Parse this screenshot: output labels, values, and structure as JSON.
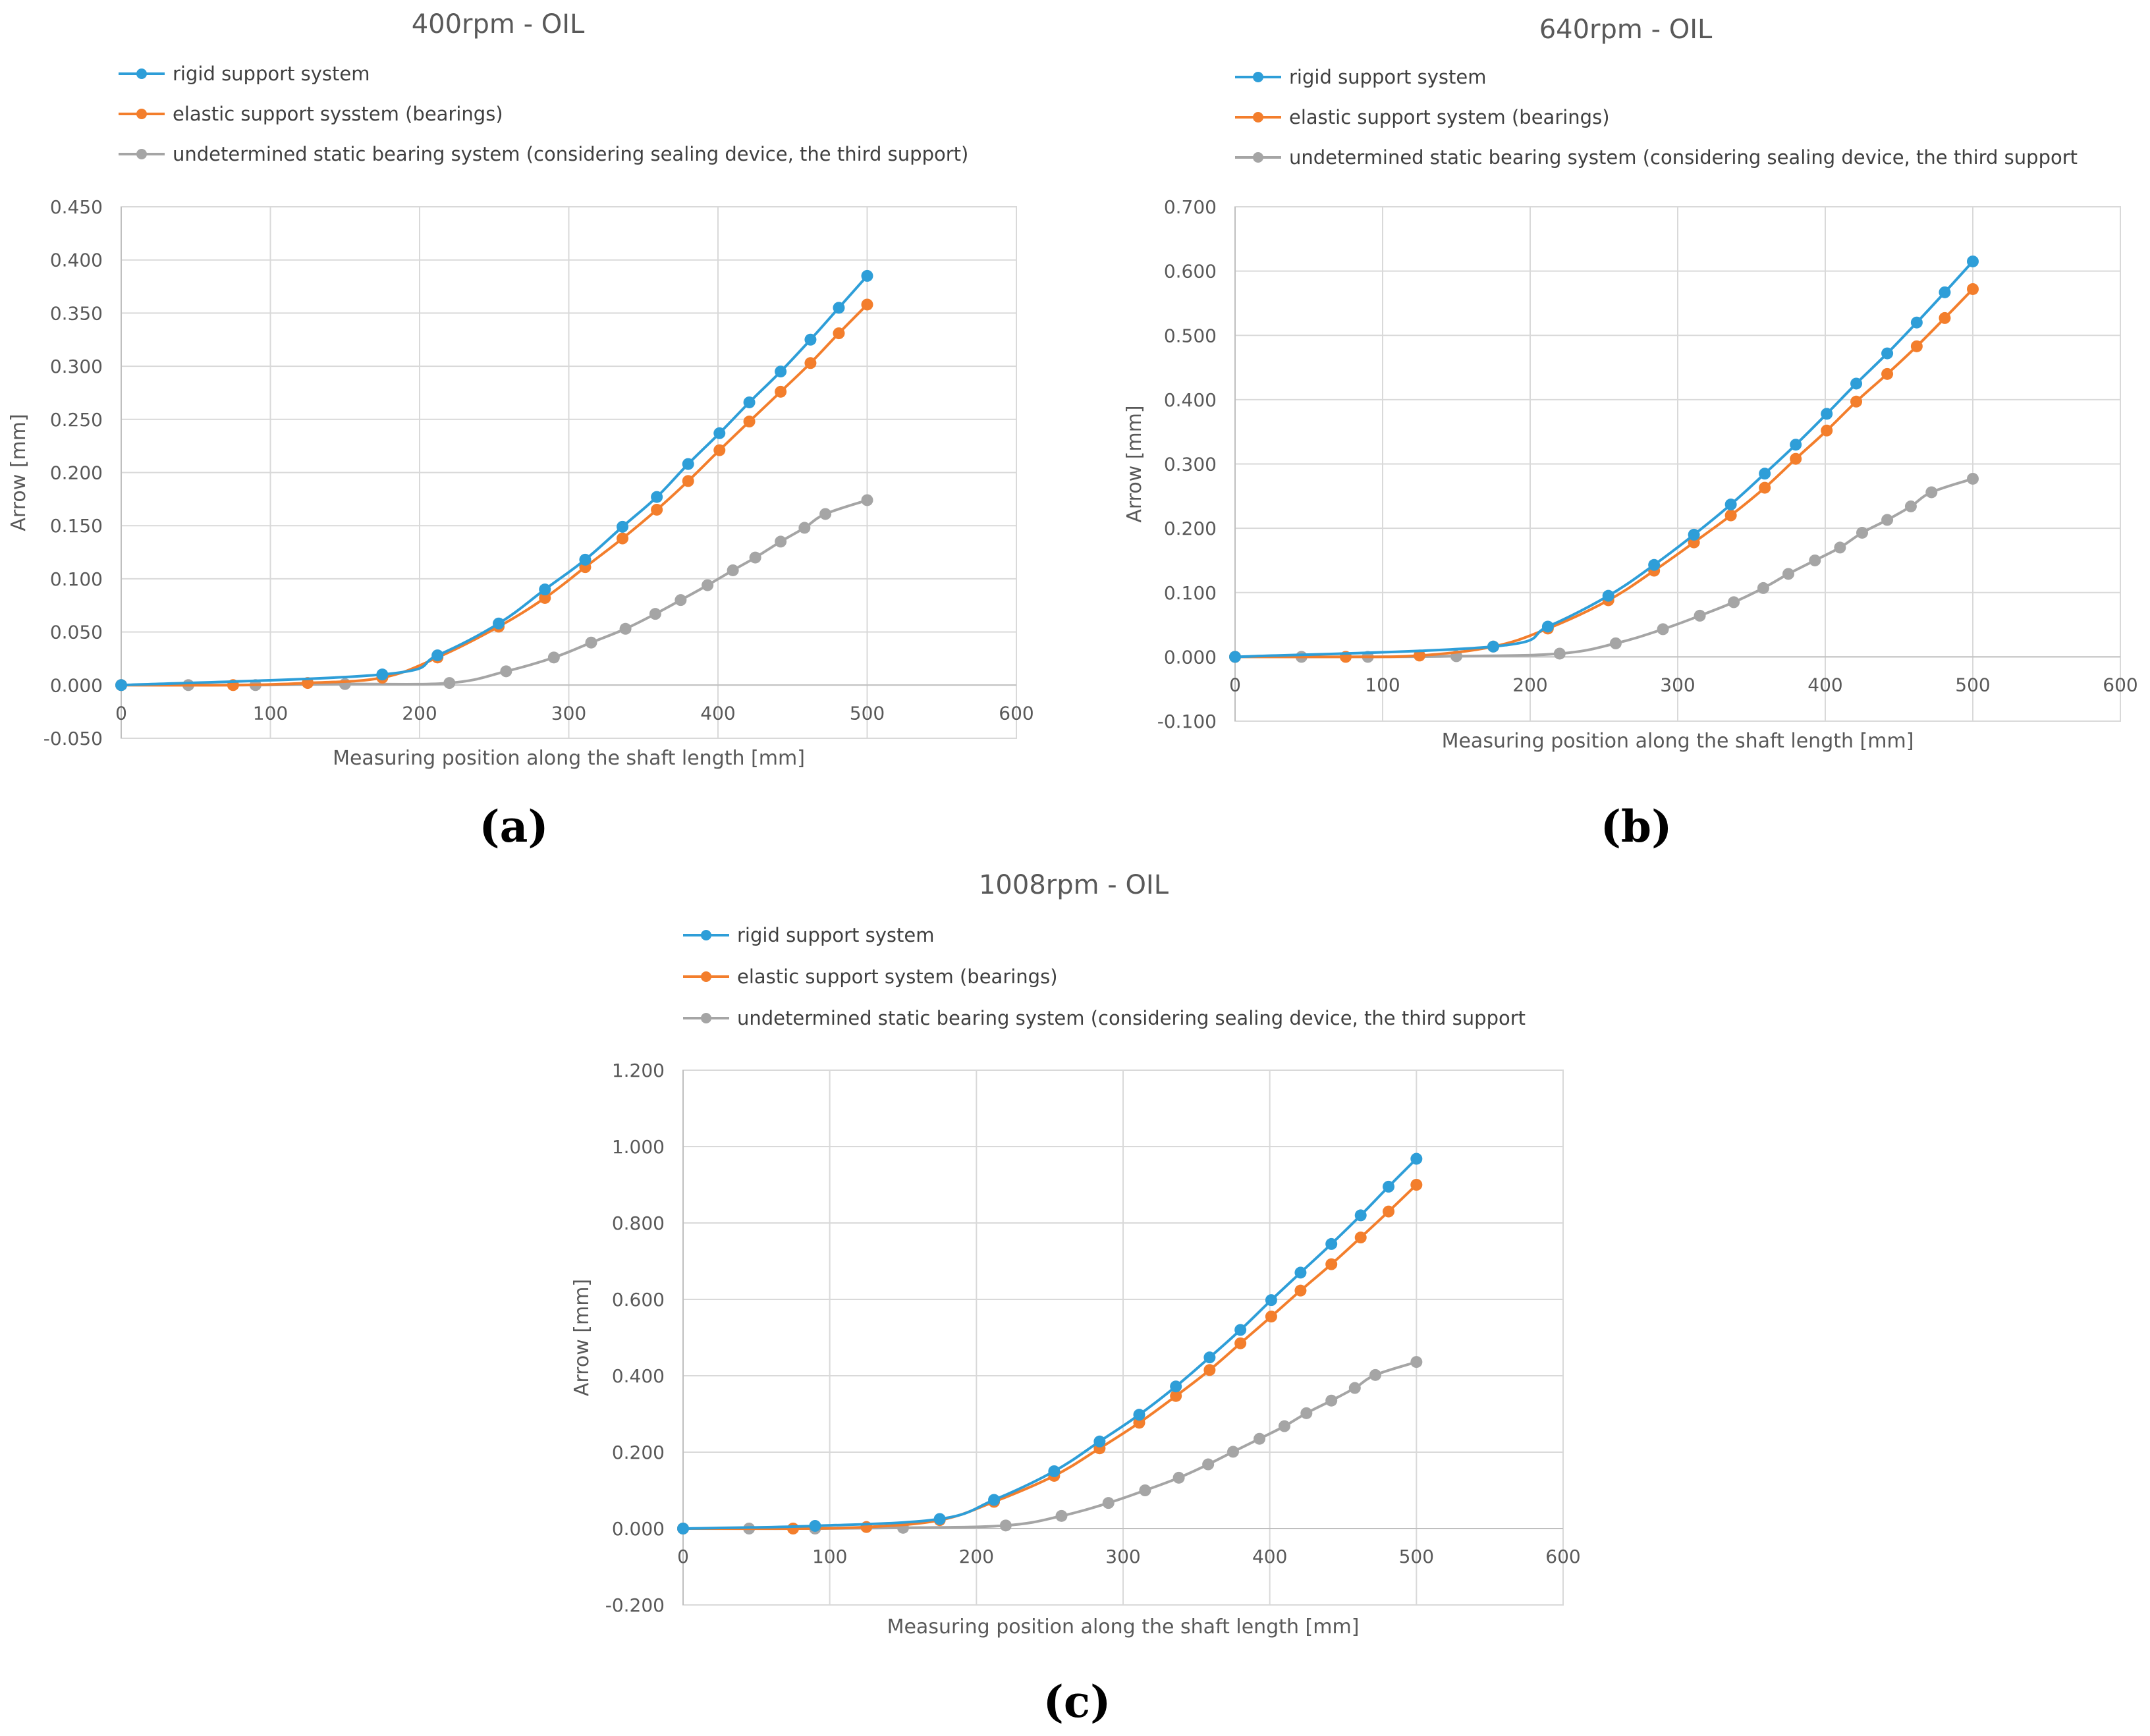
{
  "chart_data": [
    {
      "panel": "(a)",
      "type": "line",
      "title": "400rpm - OIL",
      "xlabel": "Measuring position along the shaft length [mm]",
      "ylabel": "Arrow [mm]",
      "xlim": [
        0,
        600
      ],
      "ylim": [
        -0.05,
        0.45
      ],
      "xticks": [
        0,
        100,
        200,
        300,
        400,
        500,
        600
      ],
      "yticks": [
        -0.05,
        0,
        0.05,
        0.1,
        0.15,
        0.2,
        0.25,
        0.3,
        0.35,
        0.4,
        0.45
      ],
      "xtick_labels": [
        "0",
        "100",
        "200",
        "300",
        "400",
        "500",
        "600"
      ],
      "ytick_labels": [
        "-0.050",
        "0.000",
        "0.050",
        "0.100",
        "0.150",
        "0.200",
        "0.250",
        "0.300",
        "0.350",
        "0.400",
        "0.450"
      ],
      "grid": true,
      "legend_position": "top-left",
      "series": [
        {
          "name": "rigid support system",
          "color": "#2e9ed8",
          "x": [
            0,
            175,
            212,
            253,
            284,
            311,
            336,
            359,
            380,
            401,
            421,
            442,
            462,
            481,
            500
          ],
          "y": [
            0,
            0.01,
            0.028,
            0.058,
            0.09,
            0.118,
            0.149,
            0.177,
            0.208,
            0.237,
            0.266,
            0.295,
            0.325,
            0.355,
            0.385
          ]
        },
        {
          "name": "elastic support sysstem (bearings)",
          "color": "#f37e2c",
          "x": [
            0,
            75,
            125,
            175,
            212,
            253,
            284,
            311,
            336,
            359,
            380,
            401,
            421,
            442,
            462,
            481,
            500
          ],
          "y": [
            0,
            0,
            0.002,
            0.007,
            0.026,
            0.055,
            0.082,
            0.111,
            0.138,
            0.165,
            0.192,
            0.221,
            0.248,
            0.276,
            0.303,
            0.331,
            0.358
          ]
        },
        {
          "name": "undetermined static bearing system (considering sealing device, the third support)",
          "color": "#a5a5a5",
          "x": [
            0,
            45,
            90,
            150,
            220,
            258,
            290,
            315,
            338,
            358,
            375,
            393,
            410,
            425,
            442,
            458,
            472,
            500
          ],
          "y": [
            0,
            0,
            0,
            0.001,
            0.002,
            0.013,
            0.026,
            0.04,
            0.053,
            0.067,
            0.08,
            0.094,
            0.108,
            0.12,
            0.135,
            0.148,
            0.161,
            0.174
          ]
        }
      ]
    },
    {
      "panel": "(b)",
      "type": "line",
      "title": "640rpm - OIL",
      "xlabel": "Measuring position along the shaft length [mm]",
      "ylabel": "Arrow [mm]",
      "xlim": [
        0,
        600
      ],
      "ylim": [
        -0.1,
        0.7
      ],
      "xticks": [
        0,
        100,
        200,
        300,
        400,
        500,
        600
      ],
      "yticks": [
        -0.1,
        0,
        0.1,
        0.2,
        0.3,
        0.4,
        0.5,
        0.6,
        0.7
      ],
      "xtick_labels": [
        "0",
        "100",
        "200",
        "300",
        "400",
        "500",
        "600"
      ],
      "ytick_labels": [
        "-0.100",
        "0.000",
        "0.100",
        "0.200",
        "0.300",
        "0.400",
        "0.500",
        "0.600",
        "0.700"
      ],
      "grid": true,
      "legend_position": "top-left",
      "series": [
        {
          "name": "rigid support system",
          "color": "#2e9ed8",
          "x": [
            0,
            175,
            212,
            253,
            284,
            311,
            336,
            359,
            380,
            401,
            421,
            442,
            462,
            481,
            500
          ],
          "y": [
            0,
            0.016,
            0.047,
            0.095,
            0.143,
            0.19,
            0.237,
            0.285,
            0.33,
            0.378,
            0.425,
            0.472,
            0.52,
            0.567,
            0.615
          ]
        },
        {
          "name": "elastic support system (bearings)",
          "color": "#f37e2c",
          "x": [
            0,
            75,
            125,
            175,
            212,
            253,
            284,
            311,
            336,
            359,
            380,
            401,
            421,
            442,
            462,
            481,
            500
          ],
          "y": [
            0,
            0,
            0.002,
            0.016,
            0.044,
            0.088,
            0.134,
            0.178,
            0.22,
            0.263,
            0.308,
            0.352,
            0.397,
            0.44,
            0.483,
            0.527,
            0.572
          ]
        },
        {
          "name": "undetermined static bearing system (considering sealing device, the third support",
          "color": "#a5a5a5",
          "x": [
            0,
            45,
            90,
            150,
            220,
            258,
            290,
            315,
            338,
            358,
            375,
            393,
            410,
            425,
            442,
            458,
            472,
            500
          ],
          "y": [
            0,
            0,
            0,
            0.001,
            0.005,
            0.021,
            0.043,
            0.064,
            0.085,
            0.107,
            0.129,
            0.15,
            0.17,
            0.193,
            0.213,
            0.234,
            0.256,
            0.277
          ]
        }
      ]
    },
    {
      "panel": "(c)",
      "type": "line",
      "title": "1008rpm - OIL",
      "xlabel": "Measuring position along the shaft length [mm]",
      "ylabel": "Arrow [mm]",
      "xlim": [
        0,
        600
      ],
      "ylim": [
        -0.2,
        1.2
      ],
      "xticks": [
        0,
        100,
        200,
        300,
        400,
        500,
        600
      ],
      "yticks": [
        -0.2,
        0,
        0.2,
        0.4,
        0.6,
        0.8,
        1.0,
        1.2
      ],
      "xtick_labels": [
        "0",
        "100",
        "200",
        "300",
        "400",
        "500",
        "600"
      ],
      "ytick_labels": [
        "-0.200",
        "0.000",
        "0.200",
        "0.400",
        "0.600",
        "0.800",
        "1.000",
        "1.200"
      ],
      "grid": true,
      "legend_position": "top-left",
      "series": [
        {
          "name": "rigid support system",
          "color": "#2e9ed8",
          "x": [
            0,
            90,
            175,
            212,
            253,
            284,
            311,
            336,
            359,
            380,
            401,
            421,
            442,
            462,
            481,
            500
          ],
          "y": [
            0,
            0.007,
            0.025,
            0.075,
            0.15,
            0.228,
            0.298,
            0.372,
            0.448,
            0.52,
            0.598,
            0.67,
            0.745,
            0.82,
            0.895,
            0.968
          ]
        },
        {
          "name": "elastic support system (bearings)",
          "color": "#f37e2c",
          "x": [
            0,
            75,
            125,
            175,
            212,
            253,
            284,
            311,
            336,
            359,
            380,
            401,
            421,
            442,
            462,
            481,
            500
          ],
          "y": [
            0,
            0,
            0.004,
            0.022,
            0.07,
            0.138,
            0.21,
            0.277,
            0.347,
            0.415,
            0.485,
            0.555,
            0.623,
            0.692,
            0.762,
            0.83,
            0.9
          ]
        },
        {
          "name": "undetermined static bearing system (considering sealing device, the third support",
          "color": "#a5a5a5",
          "x": [
            0,
            45,
            90,
            150,
            220,
            258,
            290,
            315,
            338,
            358,
            375,
            393,
            410,
            425,
            442,
            458,
            472,
            500
          ],
          "y": [
            0,
            0,
            0,
            0.002,
            0.008,
            0.033,
            0.067,
            0.1,
            0.133,
            0.168,
            0.201,
            0.235,
            0.268,
            0.302,
            0.335,
            0.368,
            0.402,
            0.436
          ]
        }
      ]
    }
  ]
}
